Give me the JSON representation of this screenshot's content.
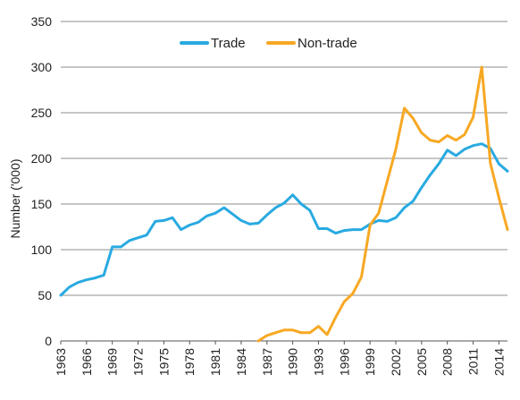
{
  "chart_data": {
    "type": "line",
    "ylabel": "Number ('000)",
    "ylim": [
      0,
      350
    ],
    "yticks": [
      0,
      50,
      100,
      150,
      200,
      250,
      300,
      350
    ],
    "xlim": [
      1963,
      2015
    ],
    "xticks": [
      1963,
      1966,
      1969,
      1972,
      1975,
      1978,
      1981,
      1984,
      1987,
      1990,
      1993,
      1996,
      1999,
      2002,
      2005,
      2008,
      2011,
      2014
    ],
    "grid": "horizontal",
    "legend_position": "top-center",
    "series": [
      {
        "name": "Trade",
        "color": "#29aae1",
        "x": [
          1963,
          1964,
          1965,
          1966,
          1967,
          1968,
          1969,
          1970,
          1971,
          1972,
          1973,
          1974,
          1975,
          1976,
          1977,
          1978,
          1979,
          1980,
          1981,
          1982,
          1983,
          1984,
          1985,
          1986,
          1987,
          1988,
          1989,
          1990,
          1991,
          1992,
          1993,
          1994,
          1995,
          1996,
          1997,
          1998,
          1999,
          2000,
          2001,
          2002,
          2003,
          2004,
          2005,
          2006,
          2007,
          2008,
          2009,
          2010,
          2011,
          2012,
          2013,
          2014,
          2015
        ],
        "values": [
          50,
          59,
          64,
          67,
          69,
          72,
          103,
          103,
          110,
          113,
          116,
          131,
          132,
          135,
          122,
          127,
          130,
          137,
          140,
          146,
          139,
          132,
          128,
          129,
          138,
          146,
          151,
          160,
          150,
          143,
          123,
          123,
          118,
          121,
          122,
          122,
          128,
          132,
          131,
          135,
          146,
          153,
          168,
          182,
          194,
          209,
          203,
          210,
          214,
          216,
          211,
          194,
          186
        ]
      },
      {
        "name": "Non-trade",
        "color": "#f7a823",
        "x": [
          1986,
          1987,
          1988,
          1989,
          1990,
          1991,
          1992,
          1993,
          1994,
          1995,
          1996,
          1997,
          1998,
          1999,
          2000,
          2001,
          2002,
          2003,
          2004,
          2005,
          2006,
          2007,
          2008,
          2009,
          2010,
          2011,
          2012,
          2013,
          2014,
          2015
        ],
        "values": [
          0,
          6,
          9,
          12,
          12,
          9,
          9,
          16,
          7,
          26,
          43,
          52,
          70,
          127,
          140,
          175,
          210,
          255,
          244,
          228,
          220,
          218,
          225,
          220,
          226,
          245,
          300,
          195,
          157,
          122
        ]
      }
    ]
  }
}
